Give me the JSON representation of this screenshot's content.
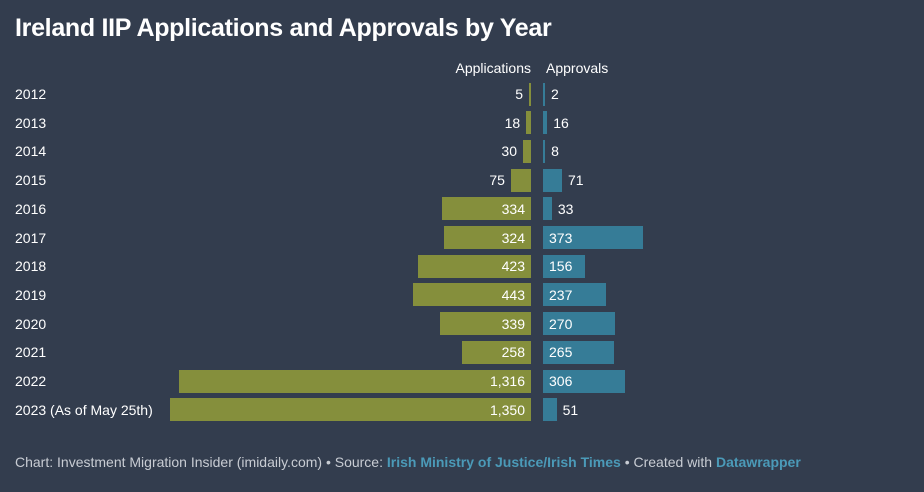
{
  "chart_data": {
    "type": "bar",
    "orientation": "horizontal",
    "title": "Ireland IIP Applications and Approvals by Year",
    "categories": [
      "2012",
      "2013",
      "2014",
      "2015",
      "2016",
      "2017",
      "2018",
      "2019",
      "2020",
      "2021",
      "2022",
      "2023 (As of May 25th)"
    ],
    "series": [
      {
        "name": "Applications",
        "color": "#858f3c",
        "values": [
          5,
          18,
          30,
          75,
          334,
          324,
          423,
          443,
          339,
          258,
          1316,
          1350
        ],
        "labels": [
          "5",
          "18",
          "30",
          "75",
          "334",
          "324",
          "423",
          "443",
          "339",
          "258",
          "1,316",
          "1,350"
        ]
      },
      {
        "name": "Approvals",
        "color": "#367c97",
        "values": [
          2,
          16,
          8,
          71,
          33,
          373,
          156,
          237,
          270,
          265,
          306,
          51
        ],
        "labels": [
          "2",
          "16",
          "8",
          "71",
          "33",
          "373",
          "156",
          "237",
          "270",
          "265",
          "306",
          "51"
        ]
      }
    ],
    "xlim": [
      0,
      1350
    ],
    "grid": false,
    "legend": "column headers above bars"
  },
  "header": {
    "title": "Ireland IIP Applications and Approvals by Year",
    "applications_label": "Applications",
    "approvals_label": "Approvals"
  },
  "footer": {
    "prefix": "Chart: Investment Migration Insider (imidaily.com) • Source: ",
    "source_link": "Irish Ministry of Justice/Irish Times",
    "middle": " • Created with ",
    "tool_link": "Datawrapper"
  }
}
